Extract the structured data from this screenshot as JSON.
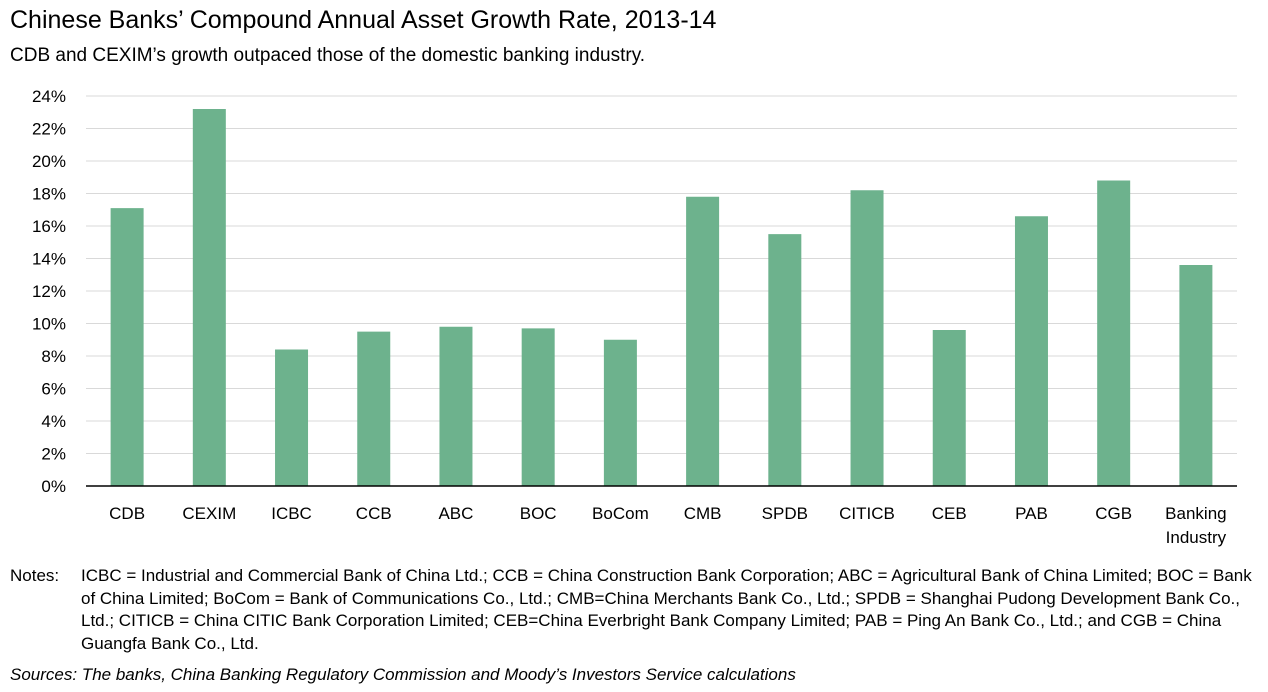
{
  "chart_data": {
    "type": "bar",
    "title": "Chinese Banks’ Compound Annual Asset Growth Rate, 2013-14",
    "subtitle": "CDB and CEXIM’s growth outpaced those of the domestic banking industry.",
    "categories": [
      "CDB",
      "CEXIM",
      "ICBC",
      "CCB",
      "ABC",
      "BOC",
      "BoCom",
      "CMB",
      "SPDB",
      "CITICB",
      "CEB",
      "PAB",
      "CGB",
      "Banking\nIndustry"
    ],
    "values": [
      17.1,
      23.2,
      8.4,
      9.5,
      9.8,
      9.7,
      9.0,
      17.8,
      15.5,
      18.2,
      9.6,
      16.6,
      18.8,
      13.6
    ],
    "value_unit": "%",
    "ylim": [
      0,
      24
    ],
    "yticks": [
      0,
      2,
      4,
      6,
      8,
      10,
      12,
      14,
      16,
      18,
      20,
      22,
      24
    ],
    "ytick_labels": [
      "0%",
      "2%",
      "4%",
      "6%",
      "8%",
      "10%",
      "12%",
      "14%",
      "16%",
      "18%",
      "20%",
      "22%",
      "24%"
    ],
    "grid": true,
    "legend": "none",
    "bar_color": "#6db28d",
    "grid_color": "#d9d9d9",
    "axis_color": "#000000"
  },
  "notes": {
    "label": "Notes:",
    "text": "ICBC = Industrial and Commercial Bank of China Ltd.; CCB = China Construction Bank Corporation; ABC = Agricultural Bank of China Limited; BOC = Bank of China Limited; BoCom = Bank of Communications Co., Ltd.; CMB=China Merchants Bank Co., Ltd.; SPDB = Shanghai Pudong Development Bank Co., Ltd.; CITICB = China CITIC Bank Corporation Limited; CEB=China Everbright Bank Company Limited; PAB = Ping An Bank Co., Ltd.; and CGB = China Guangfa Bank Co., Ltd."
  },
  "sources": "Sources: The banks, China Banking Regulatory Commission and Moody’s Investors Service calculations"
}
